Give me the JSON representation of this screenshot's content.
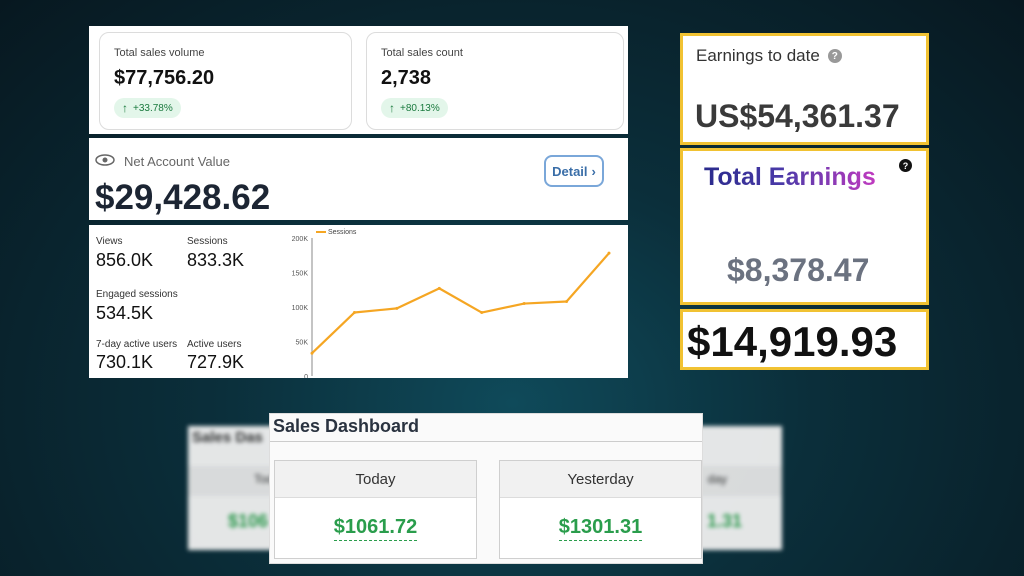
{
  "top_panel": {
    "cards": [
      {
        "label": "Total sales volume",
        "value": "$77,756.20",
        "change": "+33.78%"
      },
      {
        "label": "Total sales count",
        "value": "2,738",
        "change": "+80.13%"
      }
    ]
  },
  "net_account": {
    "label": "Net Account Value",
    "value": "$29,428.62",
    "detail_label": "Detail"
  },
  "metrics": {
    "views": {
      "label": "Views",
      "value": "856.0K"
    },
    "sessions": {
      "label": "Sessions",
      "value": "833.3K"
    },
    "engaged": {
      "label": "Engaged sessions",
      "value": "534.5K"
    },
    "active7": {
      "label": "7-day active users",
      "value": "730.1K"
    },
    "active": {
      "label": "Active users",
      "value": "727.9K"
    }
  },
  "chart_data": {
    "type": "line",
    "series": [
      {
        "name": "Sessions",
        "values": [
          33000,
          92000,
          98000,
          127000,
          92000,
          105000,
          108000,
          178000
        ]
      }
    ],
    "x": [
      1,
      2,
      3,
      4,
      5,
      6,
      7,
      8
    ],
    "ylim": [
      0,
      200000
    ],
    "yticks": [
      "200K",
      "150K",
      "100K",
      "50K",
      "0"
    ],
    "color": "#f5a623",
    "legend": "top-left"
  },
  "earnings_to_date": {
    "label": "Earnings to date",
    "value": "US$54,361.37"
  },
  "total_earnings": {
    "title": "Total Earnings",
    "value": "$8,378.47"
  },
  "big_total": {
    "value": "$14,919.93"
  },
  "sales_dashboard": {
    "title": "Sales Dashboard",
    "today_label": "Today",
    "today_value": "$1061.72",
    "yesterday_label": "Yesterday",
    "yesterday_value": "$1301.31",
    "blur_title": "Sales Das",
    "blur_left": "$106",
    "blur_right": "1.31",
    "blur_left_sub": "Tod",
    "blur_right_sub": "day"
  }
}
